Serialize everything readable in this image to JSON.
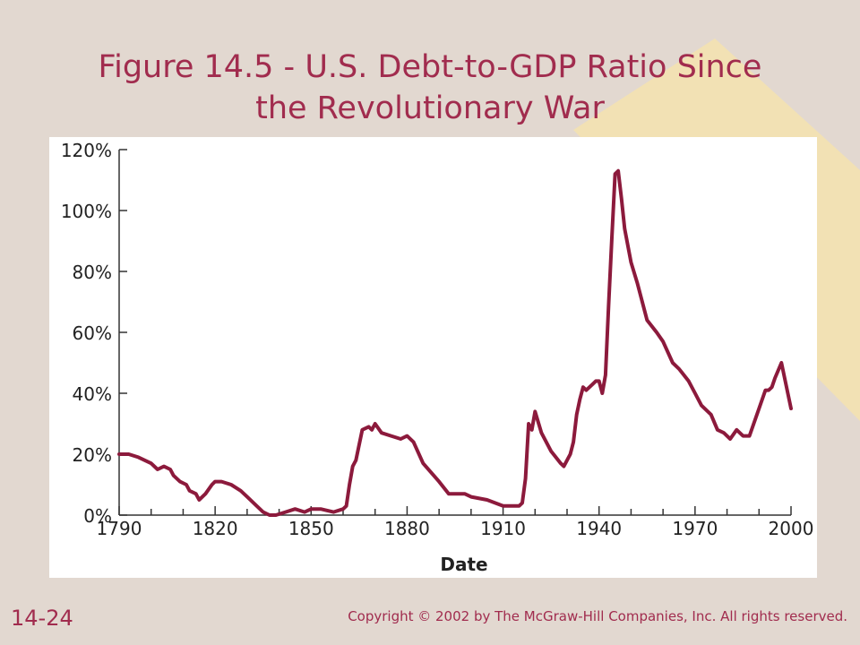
{
  "slide": {
    "title_line1": "Figure 14.5 - U.S. Debt-to-GDP Ratio Since",
    "title_line2": "the Revolutionary War",
    "slide_number": "14-24",
    "copyright": "Copyright © 2002 by The McGraw-Hill Companies, Inc.  All rights reserved.",
    "colors": {
      "background": "#e2d8d0",
      "title": "#a12c4e",
      "decoration": "#f2e1b4",
      "line": "#8c1a3c",
      "axis": "#333333"
    }
  },
  "chart_data": {
    "type": "line",
    "title": "Figure 14.5 - U.S. Debt-to-GDP Ratio Since the Revolutionary War",
    "xlabel": "Date",
    "ylabel": "",
    "xlim": [
      1790,
      2000
    ],
    "ylim": [
      0,
      120
    ],
    "x_ticks": [
      1790,
      1820,
      1850,
      1880,
      1910,
      1940,
      1970,
      2000
    ],
    "y_ticks": [
      0,
      20,
      40,
      60,
      80,
      100,
      120
    ],
    "y_tick_labels": [
      "0%",
      "20%",
      "40%",
      "60%",
      "80%",
      "100%",
      "120%"
    ],
    "grid": false,
    "series": [
      {
        "x": [
          1790,
          1793,
          1796,
          1800,
          1802,
          1804,
          1806,
          1807,
          1809,
          1811,
          1812,
          1814,
          1815,
          1817,
          1819,
          1820,
          1822,
          1825,
          1828,
          1830,
          1833,
          1835,
          1837,
          1839,
          1842,
          1845,
          1848,
          1850,
          1853,
          1857,
          1860,
          1861,
          1862,
          1863,
          1864,
          1866,
          1868,
          1869,
          1870,
          1872,
          1875,
          1878,
          1880,
          1882,
          1885,
          1890,
          1893,
          1895,
          1897,
          1898,
          1900,
          1905,
          1910,
          1915,
          1916,
          1917,
          1918,
          1919,
          1920,
          1922,
          1925,
          1928,
          1929,
          1931,
          1932,
          1933,
          1934,
          1935,
          1936,
          1937,
          1938,
          1939,
          1940,
          1941,
          1942,
          1943,
          1944,
          1945,
          1946,
          1947,
          1948,
          1950,
          1952,
          1955,
          1958,
          1960,
          1963,
          1965,
          1968,
          1970,
          1972,
          1975,
          1977,
          1979,
          1981,
          1983,
          1985,
          1987,
          1990,
          1992,
          1993,
          1994,
          1995,
          1997,
          2000
        ],
        "values": [
          20,
          20,
          19,
          17,
          15,
          16,
          15,
          13,
          11,
          10,
          8,
          7,
          5,
          7,
          10,
          11,
          11,
          10,
          8,
          6,
          3,
          1,
          0,
          0,
          1,
          2,
          1,
          2,
          2,
          1,
          2,
          3,
          10,
          16,
          18,
          28,
          29,
          28,
          30,
          27,
          26,
          25,
          26,
          24,
          17,
          11,
          7,
          7,
          7,
          7,
          6,
          5,
          3,
          3,
          4,
          12,
          30,
          28,
          34,
          27,
          21,
          17,
          16,
          20,
          24,
          33,
          38,
          42,
          41,
          42,
          43,
          44,
          44,
          40,
          46,
          69,
          91,
          112,
          113,
          104,
          94,
          83,
          76,
          64,
          60,
          57,
          50,
          48,
          44,
          40,
          36,
          33,
          28,
          27,
          25,
          28,
          26,
          26,
          35,
          41,
          41,
          42,
          45,
          50,
          35
        ]
      }
    ]
  }
}
